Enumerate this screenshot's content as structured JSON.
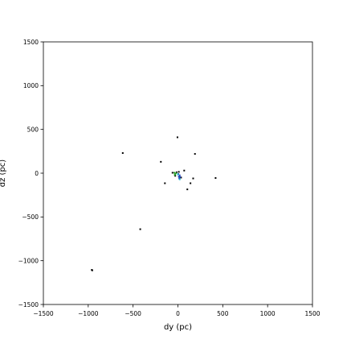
{
  "chart_data": {
    "type": "scatter",
    "title": "",
    "xlabel": "dy (pc)",
    "ylabel": "dz (pc)",
    "xlim": [
      -1500,
      1500
    ],
    "ylim": [
      -1500,
      1500
    ],
    "xticks": [
      -1500,
      -1000,
      -500,
      0,
      500,
      1000,
      1500
    ],
    "xtick_labels": [
      "−1500",
      "−1000",
      "−500",
      "0",
      "500",
      "1000",
      "1500"
    ],
    "yticks": [
      -1500,
      -1000,
      -500,
      0,
      500,
      1000,
      1500
    ],
    "ytick_labels": [
      "−1500",
      "−1000",
      "−500",
      "0",
      "500",
      "1000",
      "1500"
    ],
    "grid": false,
    "legend": "none",
    "series": [
      {
        "color": "#000000",
        "points": [
          [
            -615,
            230
          ],
          [
            -420,
            -640
          ],
          [
            -960,
            -1105
          ],
          [
            -955,
            -1110
          ],
          [
            -5,
            410
          ],
          [
            190,
            220
          ],
          [
            -190,
            130
          ],
          [
            -145,
            -115
          ],
          [
            420,
            -55
          ],
          [
            70,
            30
          ],
          [
            105,
            -185
          ],
          [
            140,
            -115
          ],
          [
            170,
            -60
          ],
          [
            -60,
            5
          ],
          [
            -30,
            -30
          ],
          [
            35,
            -50
          ],
          [
            10,
            15
          ],
          [
            -15,
            10
          ]
        ]
      },
      {
        "color": "#1f3fb4",
        "points": [
          [
            10,
            -40
          ],
          [
            15,
            -60
          ],
          [
            20,
            -25
          ],
          [
            5,
            -10
          ],
          [
            25,
            -45
          ]
        ]
      },
      {
        "color": "#2ca02c",
        "points": [
          [
            -40,
            5
          ],
          [
            -30,
            -10
          ],
          [
            -20,
            0
          ],
          [
            -35,
            -20
          ]
        ]
      },
      {
        "color": "#17becf",
        "points": [
          [
            0,
            -15
          ],
          [
            20,
            -70
          ]
        ]
      }
    ]
  }
}
